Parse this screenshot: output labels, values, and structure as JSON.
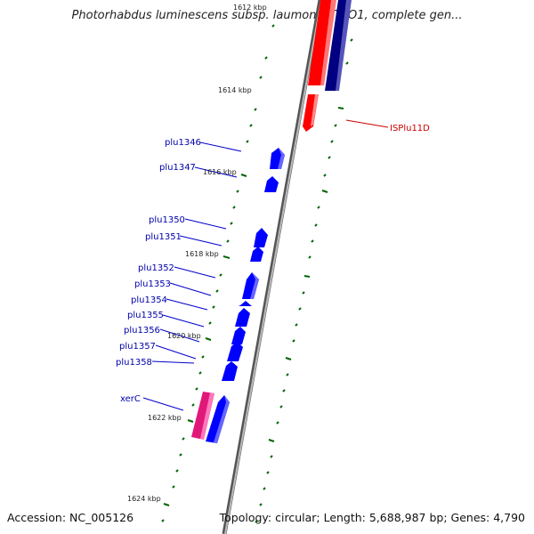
{
  "title": "Photorhabdus luminescens subsp. laumondii TTO1, complete gen...",
  "footer": {
    "accession": "Accession: NC_005126",
    "summary": "Topology: circular; Length: 5,688,987 bp; Genes: 4,790"
  },
  "ticks": [
    {
      "label": "1612 kbp"
    },
    {
      "label": "1614 kbp"
    },
    {
      "label": "1616 kbp"
    },
    {
      "label": "1618 kbp"
    },
    {
      "label": "1620 kbp"
    },
    {
      "label": "1622 kbp"
    },
    {
      "label": "1624 kbp"
    }
  ],
  "genes": [
    {
      "label": "plu1346"
    },
    {
      "label": "plu1347"
    },
    {
      "label": "plu1350"
    },
    {
      "label": "plu1351"
    },
    {
      "label": "plu1352"
    },
    {
      "label": "plu1353"
    },
    {
      "label": "plu1354"
    },
    {
      "label": "plu1355"
    },
    {
      "label": "plu1356"
    },
    {
      "label": "plu1357"
    },
    {
      "label": "plu1358"
    },
    {
      "label": "xerC"
    }
  ],
  "outer_features": [
    {
      "label": "ISPlu11D"
    }
  ],
  "colors": {
    "gene_blue": "#0000ff",
    "navy": "#000080",
    "red": "#ff0000",
    "pink": "#e0187a",
    "tick_green": "#006400",
    "backbone": "#888888"
  }
}
